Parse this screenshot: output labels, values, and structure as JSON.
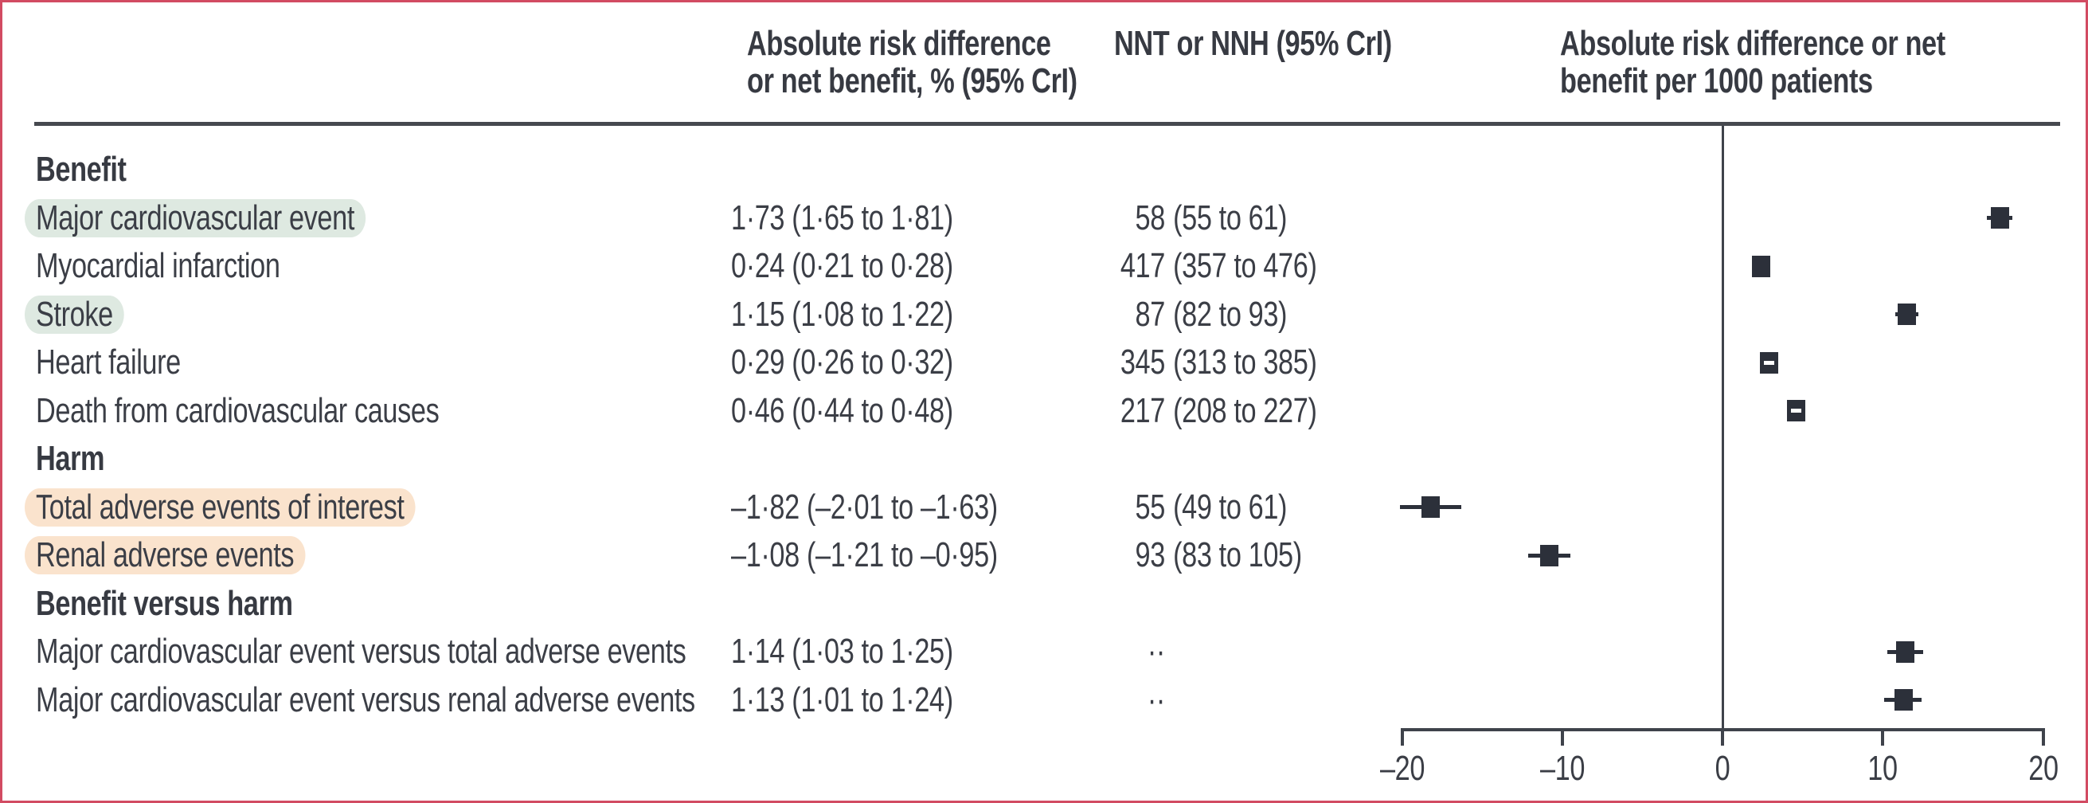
{
  "columns": {
    "ard_header": "Absolute risk difference\nor net benefit, % (95% CrI)",
    "nnt_header": "NNT or NNH (95% CrI)",
    "plot_header": "Absolute risk difference or net\nbenefit per 1000 patients"
  },
  "table": {
    "rows": [
      {
        "type": "section",
        "label": "Benefit"
      },
      {
        "type": "data",
        "label": "Major cardiovascular event",
        "highlight": "green",
        "ard": "1·73 (1·65 to 1·81)",
        "nnt_num": "58",
        "nnt_ci": "(55 to 61)",
        "circle": "green"
      },
      {
        "type": "data",
        "label": "Myocardial infarction",
        "highlight": null,
        "ard": "0·24 (0·21 to 0·28)",
        "nnt_num": "417",
        "nnt_ci": "(357 to 476)",
        "circle": null
      },
      {
        "type": "data",
        "label": "Stroke",
        "highlight": "green",
        "ard": "1·15 (1·08 to 1·22)",
        "nnt_num": "87",
        "nnt_ci": "(82 to 93)",
        "circle": "green"
      },
      {
        "type": "data",
        "label": "Heart failure",
        "highlight": null,
        "ard": "0·29 (0·26 to 0·32)",
        "nnt_num": "345",
        "nnt_ci": "(313 to 385)",
        "circle": null
      },
      {
        "type": "data",
        "label": "Death from cardiovascular causes",
        "highlight": null,
        "ard": "0·46 (0·44 to 0·48)",
        "nnt_num": "217",
        "nnt_ci": "(208 to 227)",
        "circle": null
      },
      {
        "type": "section",
        "label": "Harm"
      },
      {
        "type": "data",
        "label": "Total adverse events of interest",
        "highlight": "peach",
        "ard": "–1·82 (–2·01 to –1·63)",
        "nnt_num": "55",
        "nnt_ci": "(49 to 61)",
        "circle": "orange"
      },
      {
        "type": "data",
        "label": "Renal adverse events",
        "highlight": "peach",
        "ard": "–1·08 (–1·21 to –0·95)",
        "nnt_num": "93",
        "nnt_ci": "(83 to 105)",
        "circle": "orange"
      },
      {
        "type": "section",
        "label": "Benefit versus harm"
      },
      {
        "type": "data",
        "label": "Major cardiovascular event versus total adverse events",
        "highlight": null,
        "ard": "1·14 (1·03 to 1·25)",
        "nnt_num": "··",
        "nnt_ci": "",
        "circle": null
      },
      {
        "type": "data",
        "label": "Major cardiovascular event versus renal adverse events",
        "highlight": null,
        "ard": "1·13 (1·01 to 1·24)",
        "nnt_num": "··",
        "nnt_ci": "",
        "circle": null
      }
    ]
  },
  "chart_data": {
    "type": "forest",
    "title": "Absolute risk difference or net benefit per 1000 patients",
    "xlabel": "",
    "xlim": [
      -20,
      20
    ],
    "x_ticks": [
      -20,
      -10,
      0,
      10,
      20
    ],
    "x_tick_labels": [
      "–20",
      "–10",
      "0",
      "10",
      "20"
    ],
    "zero_reference_line": 0,
    "grid": false,
    "points": [
      {
        "label": "Major cardiovascular event",
        "estimate": 17.3,
        "ci_low": 16.5,
        "ci_high": 18.1,
        "inner_dash": false
      },
      {
        "label": "Myocardial infarction",
        "estimate": 2.4,
        "ci_low": 2.1,
        "ci_high": 2.8,
        "inner_dash": false
      },
      {
        "label": "Stroke",
        "estimate": 11.5,
        "ci_low": 10.8,
        "ci_high": 12.2,
        "inner_dash": false
      },
      {
        "label": "Heart failure",
        "estimate": 2.9,
        "ci_low": 2.6,
        "ci_high": 3.2,
        "inner_dash": true
      },
      {
        "label": "Death from cardiovascular causes",
        "estimate": 4.6,
        "ci_low": 4.4,
        "ci_high": 4.8,
        "inner_dash": true
      },
      {
        "label": "Total adverse events of interest",
        "estimate": -18.2,
        "ci_low": -20.1,
        "ci_high": -16.3,
        "inner_dash": false
      },
      {
        "label": "Renal adverse events",
        "estimate": -10.8,
        "ci_low": -12.1,
        "ci_high": -9.5,
        "inner_dash": false
      },
      {
        "label": "Major cardiovascular event versus total adverse events",
        "estimate": 11.4,
        "ci_low": 10.3,
        "ci_high": 12.5,
        "inner_dash": false
      },
      {
        "label": "Major cardiovascular event versus renal adverse events",
        "estimate": 11.3,
        "ci_low": 10.1,
        "ci_high": 12.4,
        "inner_dash": false
      }
    ]
  },
  "colors": {
    "border": "#d24b62",
    "text": "#3b3e46",
    "rule": "#46494f",
    "axis": "#3f434b",
    "marker": "#2c303a",
    "highlight_green": "#dee9e1",
    "highlight_peach": "#fae3cd",
    "circle_green": "#2e9d62",
    "circle_orange": "#f6921e"
  }
}
